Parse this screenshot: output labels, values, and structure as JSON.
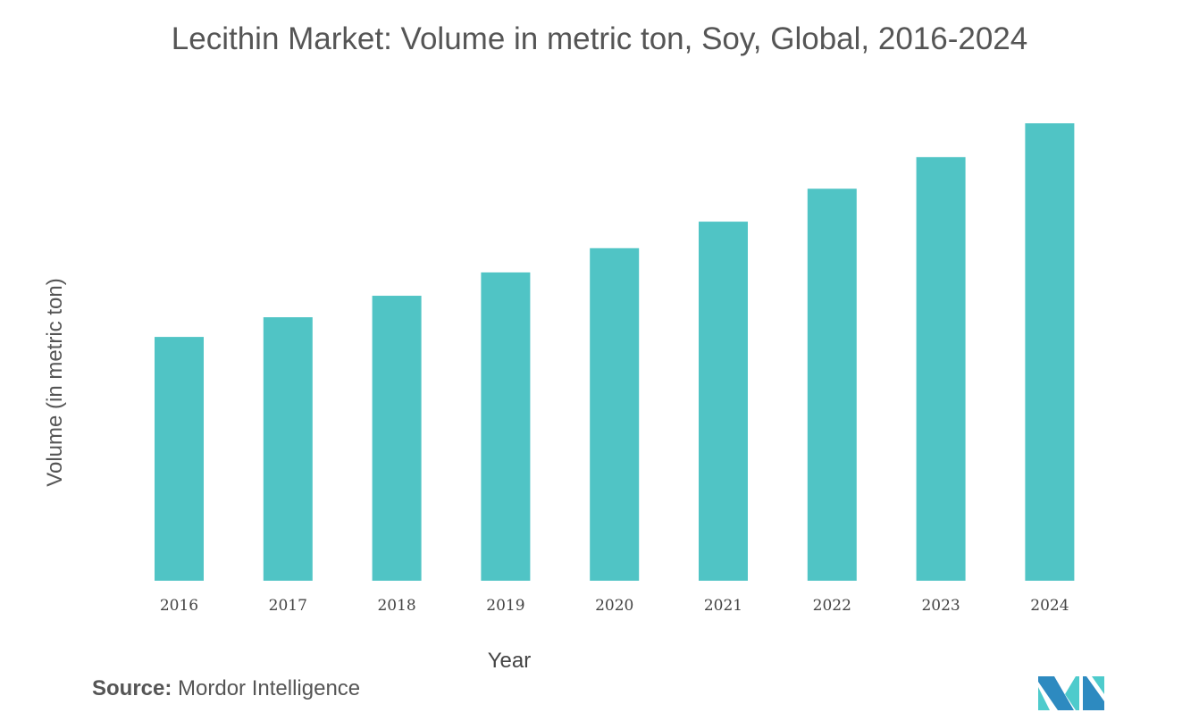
{
  "chart_data": {
    "type": "bar",
    "title": "Lecithin Market: Volume in metric ton, Soy, Global, 2016-2024",
    "xlabel": "Year",
    "ylabel": "Volume (in metric ton)",
    "categories": [
      "2016",
      "2017",
      "2018",
      "2019",
      "2020",
      "2021",
      "2022",
      "2023",
      "2024"
    ],
    "values": [
      53.3,
      57.6,
      62.3,
      67.4,
      72.7,
      78.5,
      85.7,
      92.6,
      100
    ],
    "ylim": [
      0,
      100
    ],
    "grid": false,
    "bar_color": "#50c4c5"
  },
  "source": {
    "label": "Source:",
    "text": " Mordor Intelligence"
  },
  "logo": {
    "colors": [
      "#2d8ac0",
      "#4ecbcc"
    ]
  }
}
